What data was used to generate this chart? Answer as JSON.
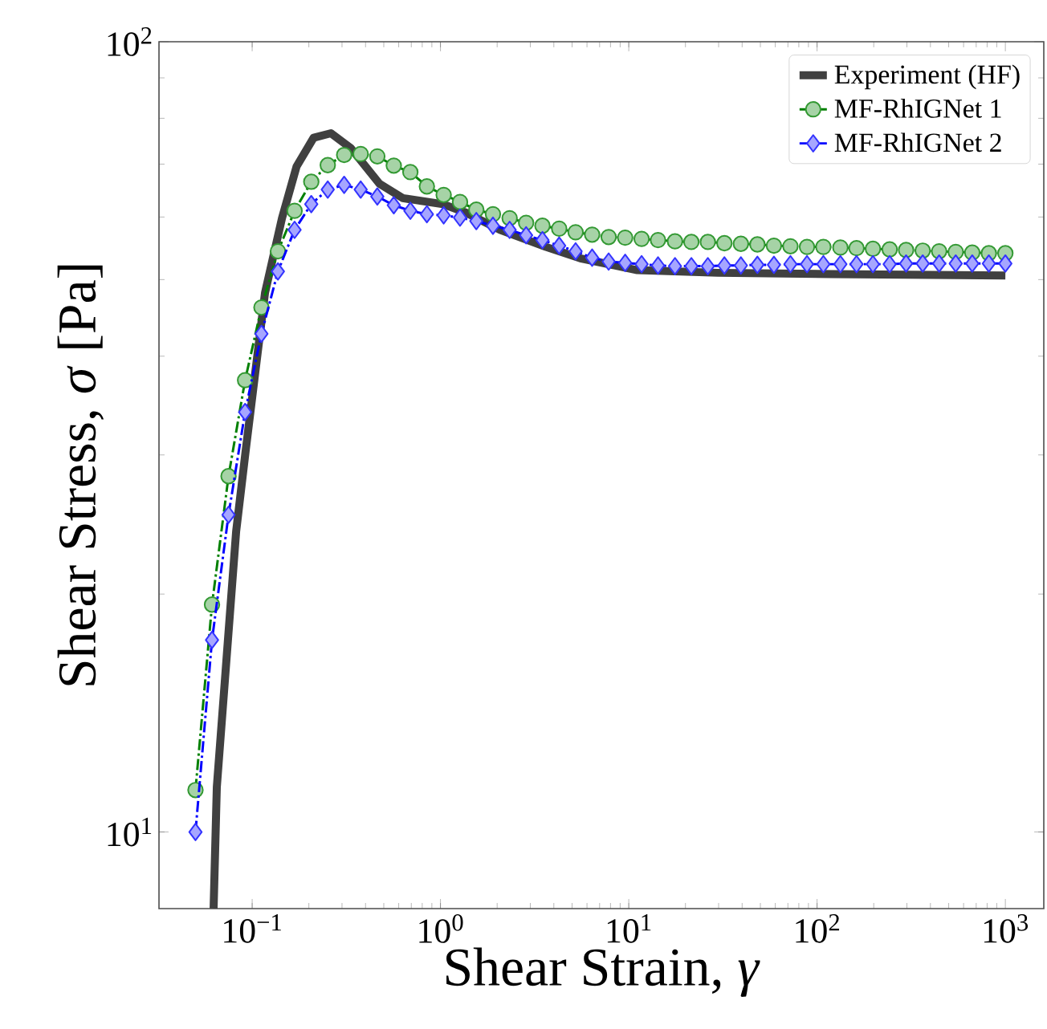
{
  "chart_data": {
    "type": "line",
    "xlabel": "Shear Strain, *γ*",
    "ylabel": "Shear Stress, *σ* [Pa]",
    "log": "xy",
    "xlim": [
      0.032,
      1600
    ],
    "ylim": [
      8,
      100
    ],
    "xticks": [
      {
        "value": 0.1,
        "label": "10$^{−1}$"
      },
      {
        "value": 1,
        "label": "10$^{0}$"
      },
      {
        "value": 10,
        "label": "10$^{1}$"
      },
      {
        "value": 100,
        "label": "10$^{2}$"
      },
      {
        "value": 1000,
        "label": "10$^{3}$"
      }
    ],
    "yticks": [
      {
        "value": 10,
        "label": "10$^{1}$"
      },
      {
        "value": 100,
        "label": "10$^{2}$"
      }
    ],
    "legend": "top right",
    "grid": false,
    "series": [
      {
        "name": "Experiment (HF)",
        "color": "#404040",
        "marker": "none",
        "line_style": "solid",
        "x": [
          0.0624,
          0.0649,
          0.0822,
          0.0924,
          0.117,
          0.144,
          0.172,
          0.212,
          0.262,
          0.335,
          0.475,
          0.63,
          1.03,
          1.36,
          2.07,
          3.63,
          5.53,
          11.1,
          29.7,
          121,
          1000
        ],
        "values": [
          8.0,
          11.4,
          24.0,
          30.4,
          48.1,
          59.8,
          69.5,
          75.6,
          76.6,
          73.3,
          66.1,
          63.4,
          62.3,
          60.8,
          57.8,
          55.0,
          53.2,
          51.4,
          51.0,
          50.8,
          50.6
        ]
      },
      {
        "name": "MF-RhIGNet 1",
        "color": "#008000",
        "marker": "circle",
        "line_style": "dashdot",
        "x": [
          0.05,
          0.0612,
          0.0749,
          0.0917,
          0.112,
          0.137,
          0.168,
          0.206,
          0.252,
          0.308,
          0.377,
          0.462,
          0.565,
          0.692,
          0.847,
          1.04,
          1.27,
          1.55,
          1.9,
          2.33,
          2.85,
          3.48,
          4.27,
          5.22,
          6.39,
          7.82,
          9.57,
          11.7,
          14.3,
          17.6,
          21.5,
          26.3,
          32.2,
          39.4,
          48.2,
          59.0,
          72.2,
          88.4,
          108,
          133,
          162,
          198,
          243,
          297,
          364,
          445,
          545,
          667,
          817,
          1000
        ],
        "values": [
          11.3,
          19.4,
          28.2,
          37.3,
          46.1,
          54.3,
          61.1,
          66.5,
          69.8,
          71.9,
          72.1,
          71.6,
          69.7,
          68.4,
          65.6,
          64.0,
          62.7,
          61.3,
          60.5,
          59.8,
          59.0,
          58.5,
          58.0,
          57.4,
          57.0,
          56.6,
          56.5,
          56.3,
          56.1,
          55.9,
          55.8,
          55.8,
          55.6,
          55.5,
          55.4,
          55.2,
          55.1,
          55.0,
          55.0,
          54.9,
          54.8,
          54.7,
          54.6,
          54.5,
          54.4,
          54.3,
          54.2,
          54.1,
          54.0,
          54.0
        ]
      },
      {
        "name": "MF-RhIGNet 2",
        "color": "#0000ff",
        "marker": "diamond",
        "line_style": "dashdot",
        "x": [
          0.05,
          0.0612,
          0.0749,
          0.0917,
          0.112,
          0.137,
          0.168,
          0.206,
          0.252,
          0.308,
          0.377,
          0.462,
          0.565,
          0.692,
          0.847,
          1.04,
          1.27,
          1.55,
          1.9,
          2.33,
          2.85,
          3.48,
          4.27,
          5.22,
          6.39,
          7.82,
          9.57,
          11.7,
          14.3,
          17.6,
          21.5,
          26.3,
          32.2,
          39.4,
          48.2,
          59.0,
          72.2,
          88.4,
          108,
          133,
          162,
          198,
          243,
          297,
          364,
          445,
          545,
          667,
          817,
          1000
        ],
        "values": [
          10.0,
          17.5,
          25.2,
          34.0,
          42.7,
          51.2,
          57.8,
          62.3,
          65.0,
          65.9,
          65.0,
          63.7,
          62.1,
          61.1,
          60.5,
          60.3,
          59.9,
          59.3,
          58.5,
          57.8,
          56.9,
          56.1,
          55.2,
          54.3,
          53.3,
          52.7,
          52.5,
          52.3,
          52.1,
          52.0,
          52.0,
          52.0,
          52.1,
          52.1,
          52.2,
          52.2,
          52.3,
          52.3,
          52.3,
          52.3,
          52.3,
          52.3,
          52.3,
          52.4,
          52.4,
          52.4,
          52.4,
          52.4,
          52.4,
          52.4
        ]
      }
    ]
  }
}
